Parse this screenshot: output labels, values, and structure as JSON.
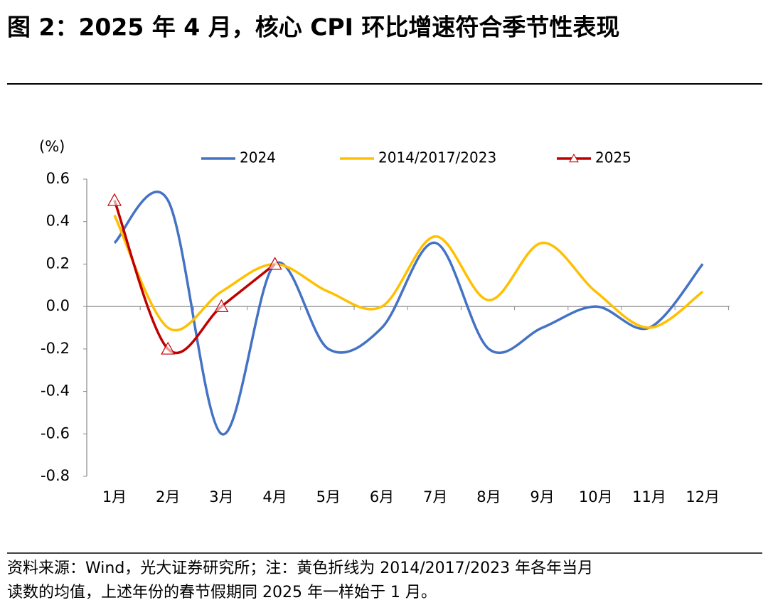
{
  "chart_data": {
    "type": "line",
    "title": "图 2：2025 年 4 月，核心 CPI 环比增速符合季节性表现",
    "y_label": "(%)",
    "categories": [
      "1月",
      "2月",
      "3月",
      "4月",
      "5月",
      "6月",
      "7月",
      "8月",
      "9月",
      "10月",
      "11月",
      "12月"
    ],
    "series": [
      {
        "name": "2024",
        "color": "#4472c4",
        "values": [
          0.3,
          0.5,
          -0.6,
          0.2,
          -0.2,
          -0.1,
          0.3,
          -0.2,
          -0.1,
          0.0,
          -0.1,
          0.2
        ]
      },
      {
        "name": "2014/2017/2023",
        "color": "#ffc000",
        "values": [
          0.43,
          -0.1,
          0.07,
          0.2,
          0.07,
          0.0,
          0.33,
          0.03,
          0.3,
          0.07,
          -0.1,
          0.07
        ]
      },
      {
        "name": "2025",
        "color": "#c00000",
        "marker": "triangle",
        "values": [
          0.5,
          -0.2,
          0.0,
          0.2,
          null,
          null,
          null,
          null,
          null,
          null,
          null,
          null
        ]
      }
    ],
    "ylim": [
      -0.8,
      0.6
    ],
    "yticks": [
      -0.8,
      -0.6,
      -0.4,
      -0.2,
      {
        "value": 0,
        "label": "0.0"
      },
      0.2,
      0.4,
      0.6
    ],
    "legend": "top",
    "footer": [
      "资料来源：Wind，光大证券研究所；注：黄色折线为 2014/2017/2023 年各年当月",
      "读数的均值，上述年份的春节假期同 2025 年一样始于 1 月。"
    ]
  }
}
